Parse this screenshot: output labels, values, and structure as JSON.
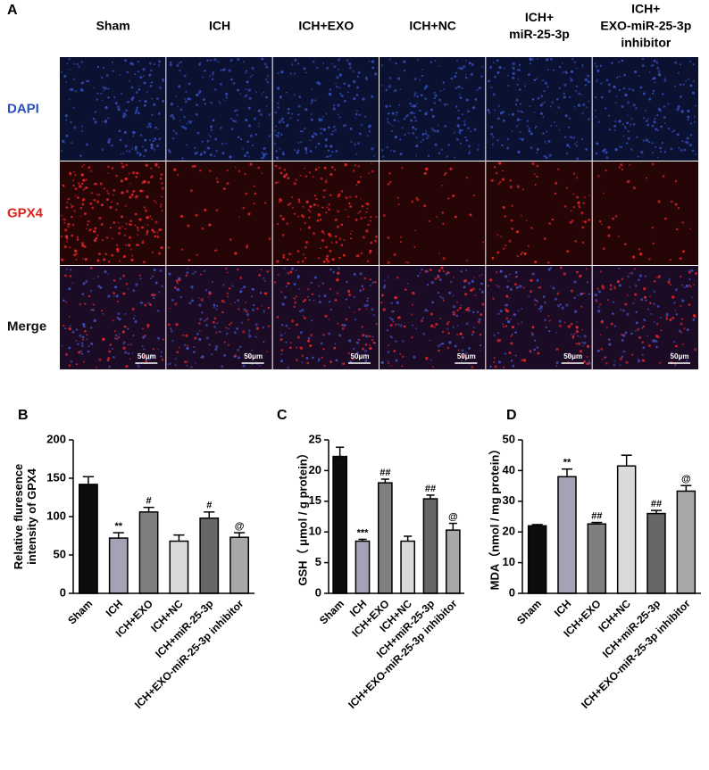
{
  "panel_a": {
    "label": "A",
    "columns": [
      [
        "Sham"
      ],
      [
        "ICH"
      ],
      [
        "ICH+EXO"
      ],
      [
        "ICH+NC"
      ],
      [
        "ICH+",
        "miR-25-3p"
      ],
      [
        "ICH+",
        "EXO-miR-25-3p",
        "inhibitor"
      ]
    ],
    "rows": [
      "DAPI",
      "GPX4",
      "Merge"
    ],
    "scale_bar": "50μm"
  },
  "chart_data": [
    {
      "type": "bar",
      "label": "B",
      "ylabel": [
        "Relative fluresence",
        "intensity of GPX4"
      ],
      "categories": [
        "Sham",
        "ICH",
        "ICH+EXO",
        "ICH+NC",
        "ICH+miR-25-3p",
        "ICH+EXO-miR-25-3p inhibitor"
      ],
      "values": [
        142,
        72,
        106,
        68,
        98,
        73
      ],
      "errors": [
        10,
        7,
        6,
        8,
        8,
        6
      ],
      "annotations": [
        null,
        "**",
        "#",
        null,
        "#",
        "@"
      ],
      "colors": [
        "#0d0d0d",
        "#a3a3b5",
        "#7f7f7f",
        "#dadada",
        "#666666",
        "#a8a8a8"
      ],
      "ylim": [
        0,
        200
      ],
      "yticks": [
        0,
        50,
        100,
        150,
        200
      ]
    },
    {
      "type": "bar",
      "label": "C",
      "ylabel": [
        "GSH（ μmol / g protein）"
      ],
      "categories": [
        "Sham",
        "ICH",
        "ICH+EXO",
        "ICH+NC",
        "ICH+miR-25-3p",
        "ICH+EXO-miR-25-3p inhibitor"
      ],
      "values": [
        22.3,
        8.5,
        18,
        8.5,
        15.4,
        10.3
      ],
      "errors": [
        1.5,
        0.3,
        0.6,
        0.8,
        0.6,
        1.1
      ],
      "annotations": [
        null,
        "***",
        "##",
        null,
        "##",
        "@"
      ],
      "colors": [
        "#0d0d0d",
        "#a3a3b5",
        "#7f7f7f",
        "#dadada",
        "#666666",
        "#a8a8a8"
      ],
      "ylim": [
        0,
        25
      ],
      "yticks": [
        0,
        5,
        10,
        15,
        20,
        25
      ]
    },
    {
      "type": "bar",
      "label": "D",
      "ylabel": [
        "MDA（nmol / mg protein）"
      ],
      "categories": [
        "Sham",
        "ICH",
        "ICH+EXO",
        "ICH+NC",
        "ICH+miR-25-3p",
        "ICH+EXO-miR-25-3p inhibitor"
      ],
      "values": [
        22,
        38,
        22.6,
        41.5,
        26,
        33.3
      ],
      "errors": [
        0.4,
        2.5,
        0.5,
        3.5,
        1,
        1.8
      ],
      "annotations": [
        null,
        "**",
        "##",
        null,
        "##",
        "@"
      ],
      "colors": [
        "#0d0d0d",
        "#a3a3b5",
        "#7f7f7f",
        "#dadada",
        "#666666",
        "#a8a8a8"
      ],
      "ylim": [
        0,
        50
      ],
      "yticks": [
        0,
        10,
        20,
        30,
        40,
        50
      ]
    }
  ]
}
